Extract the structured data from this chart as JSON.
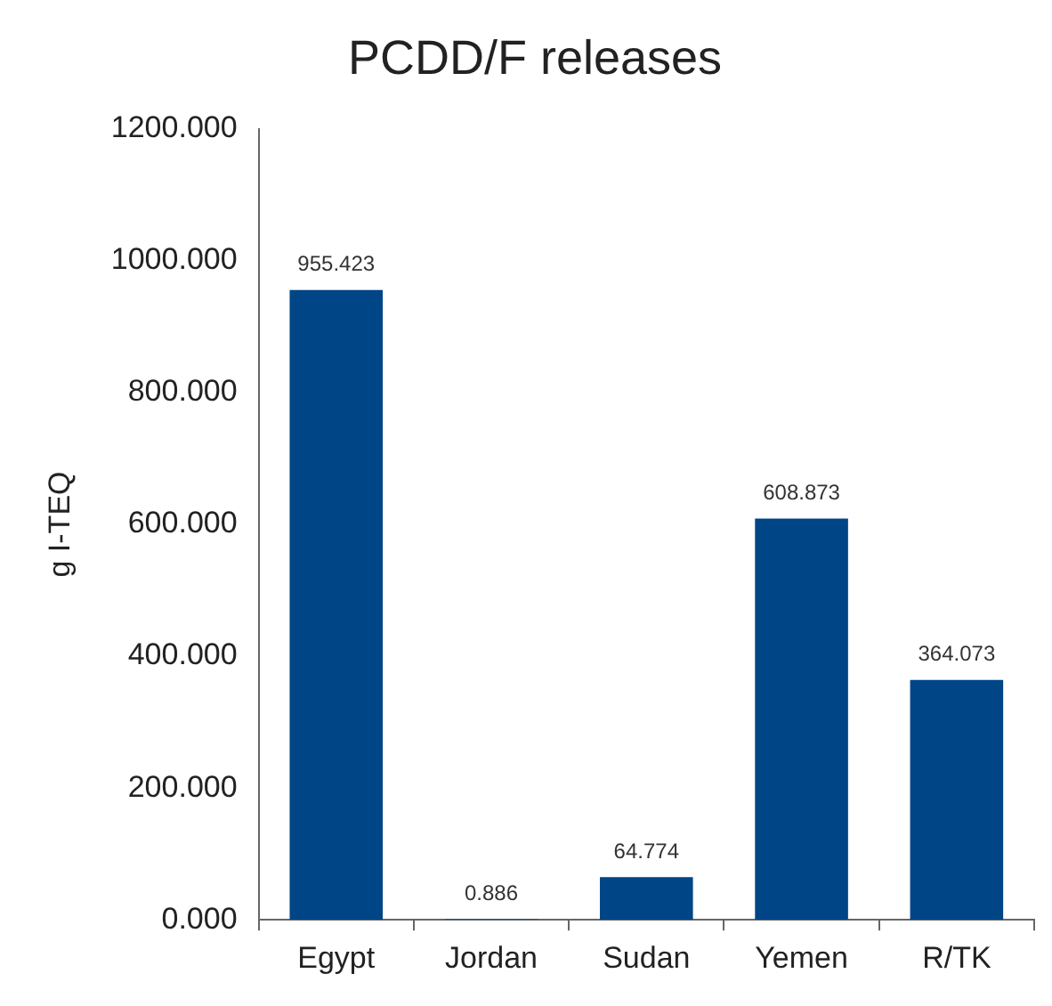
{
  "chart_data": {
    "type": "bar",
    "title": "PCDD/F releases",
    "ylabel": "g I-TEQ",
    "categories": [
      "Egypt",
      "Jordan",
      "Sudan",
      "Yemen",
      "R/TK"
    ],
    "values": [
      955.423,
      0.886,
      64.774,
      608.873,
      364.073
    ],
    "color": "#004586",
    "ylim": [
      0,
      1200
    ],
    "yticks": [
      {
        "value": 0,
        "label": "0.000"
      },
      {
        "value": 200,
        "label": "200.000"
      },
      {
        "value": 400,
        "label": "400.000"
      },
      {
        "value": 600,
        "label": "600.000"
      },
      {
        "value": 800,
        "label": "800.000"
      },
      {
        "value": 1000,
        "label": "1000.000"
      },
      {
        "value": 1200,
        "label": "1200.000"
      }
    ],
    "data_labels": true,
    "grid": false,
    "legend": false
  }
}
